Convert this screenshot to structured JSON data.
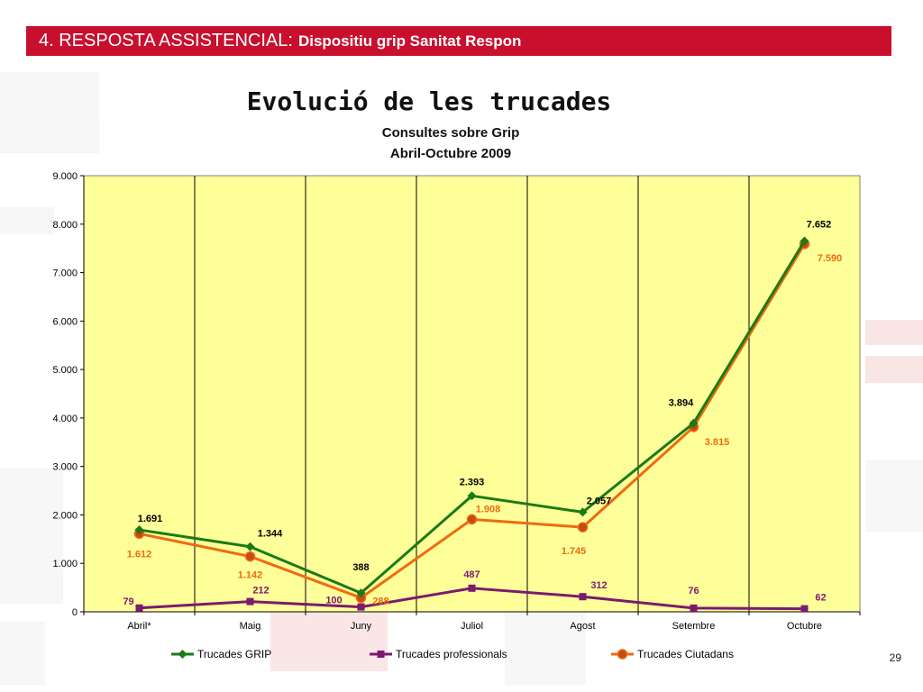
{
  "header": {
    "section": "4. RESPOSTA ASSISTENCIAL:",
    "subtitle": "Dispositiu grip Sanitat Respon"
  },
  "slide_title": "Evolució de les trucades",
  "page_number": "29",
  "colors": {
    "header_bar": "#c8102e",
    "plot_area": "#ffff99",
    "trucades_grip": "#1a7a14",
    "trucades_professionals": "#7b1a6e",
    "trucades_ciutadans": "#ee6b10"
  },
  "chart_data": {
    "type": "line",
    "title": "Consultes sobre Grip",
    "subtitle": "Abril-Octubre 2009",
    "xlabel": "",
    "ylabel": "",
    "categories": [
      "Abril*",
      "Maig",
      "Juny",
      "Juliol",
      "Agost",
      "Setembre",
      "Octubre"
    ],
    "ylim": [
      0,
      9000
    ],
    "yticks": [
      0,
      1000,
      2000,
      3000,
      4000,
      5000,
      6000,
      7000,
      8000,
      9000
    ],
    "ytick_labels": [
      "0",
      "1.000",
      "2.000",
      "3.000",
      "4.000",
      "5.000",
      "6.000",
      "7.000",
      "8.000",
      "9.000"
    ],
    "grid": "vertical lines between categories",
    "legend": "bottom",
    "series": [
      {
        "name": "Trucades GRIP",
        "marker": "diamond",
        "color": "#1a7a14",
        "values": [
          1691,
          1344,
          388,
          2393,
          2057,
          3894,
          7652
        ],
        "labels": [
          "1.691",
          "1.344",
          "388",
          "2.393",
          "2.057",
          "3.894",
          "7.652"
        ]
      },
      {
        "name": "Trucades professionals",
        "marker": "square",
        "color": "#7b1a6e",
        "values": [
          79,
          212,
          100,
          487,
          312,
          76,
          62
        ],
        "labels": [
          "79",
          "212",
          "100",
          "487",
          "312",
          "76",
          "62"
        ]
      },
      {
        "name": "Trucades Ciutadans",
        "marker": "circle",
        "color": "#ee6b10",
        "values": [
          1612,
          1142,
          288,
          1908,
          1745,
          3815,
          7590
        ],
        "labels": [
          "1.612",
          "1.142",
          "288",
          "1.908",
          "1.745",
          "3.815",
          "7.590"
        ]
      }
    ]
  }
}
